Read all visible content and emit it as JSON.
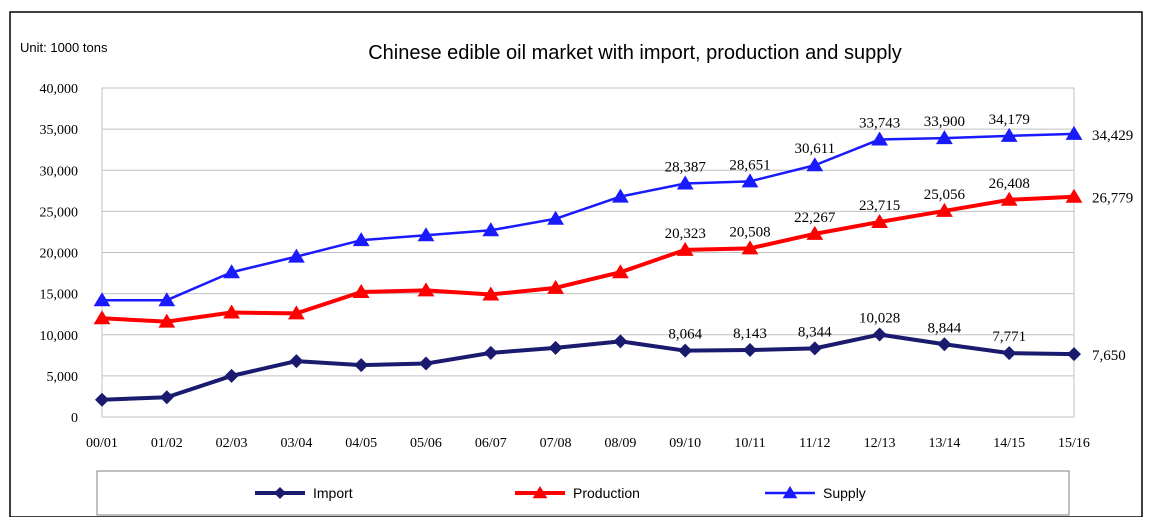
{
  "chart_data": {
    "type": "line",
    "title": "Chinese edible oil market with import, production and supply",
    "unit_label": "Unit: 1000 tons",
    "xlabel": "",
    "ylabel": "",
    "ylim": [
      0,
      40000
    ],
    "yticks": [
      0,
      5000,
      10000,
      15000,
      20000,
      25000,
      30000,
      35000,
      40000
    ],
    "ytick_labels": [
      "0",
      "5,000",
      "10,000",
      "15,000",
      "20,000",
      "25,000",
      "30,000",
      "35,000",
      "40,000"
    ],
    "grid": "horizontal",
    "legend_position": "bottom",
    "categories": [
      "00/01",
      "01/02",
      "02/03",
      "03/04",
      "04/05",
      "05/06",
      "06/07",
      "07/08",
      "08/09",
      "09/10",
      "10/11",
      "11/12",
      "12/13",
      "13/14",
      "14/15",
      "15/16"
    ],
    "series": [
      {
        "name": "Import",
        "color": "#1a1a6e",
        "marker": "diamond",
        "values": [
          2100,
          2400,
          5000,
          6800,
          6300,
          6500,
          7800,
          8400,
          9200,
          8064,
          8143,
          8344,
          10028,
          8844,
          7771,
          7650
        ],
        "labels": [
          "",
          "",
          "",
          "",
          "",
          "",
          "",
          "",
          "",
          "8,064",
          "8,143",
          "8,344",
          "10,028",
          "8,844",
          "7,771",
          "7,650"
        ]
      },
      {
        "name": "Production",
        "color": "#ff0000",
        "marker": "triangle",
        "values": [
          12000,
          11600,
          12700,
          12600,
          15200,
          15400,
          14900,
          15700,
          17600,
          20323,
          20508,
          22267,
          23715,
          25056,
          26408,
          26779
        ],
        "labels": [
          "",
          "",
          "",
          "",
          "",
          "",
          "",
          "",
          "",
          "20,323",
          "20,508",
          "22,267",
          "23,715",
          "25,056",
          "26,408",
          "26,779"
        ]
      },
      {
        "name": "Supply",
        "color": "#1a1aff",
        "marker": "triangle",
        "values": [
          14200,
          14200,
          17600,
          19500,
          21500,
          22100,
          22700,
          24100,
          26800,
          28387,
          28651,
          30611,
          33743,
          33900,
          34179,
          34429
        ],
        "labels": [
          "",
          "",
          "",
          "",
          "",
          "",
          "",
          "",
          "",
          "28,387",
          "28,651",
          "30,611",
          "33,743",
          "33,900",
          "34,179",
          "34,429"
        ]
      }
    ]
  }
}
